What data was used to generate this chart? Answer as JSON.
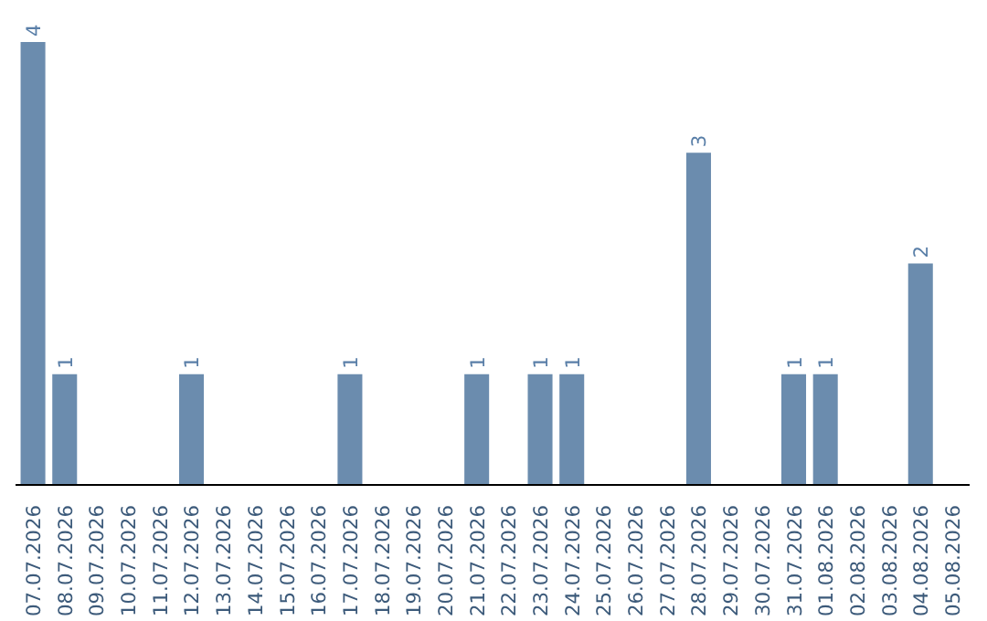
{
  "chart_data": {
    "type": "bar",
    "categories": [
      "07.07.2026",
      "08.07.2026",
      "09.07.2026",
      "10.07.2026",
      "11.07.2026",
      "12.07.2026",
      "13.07.2026",
      "14.07.2026",
      "15.07.2026",
      "16.07.2026",
      "17.07.2026",
      "18.07.2026",
      "19.07.2026",
      "20.07.2026",
      "21.07.2026",
      "22.07.2026",
      "23.07.2026",
      "24.07.2026",
      "25.07.2026",
      "26.07.2026",
      "27.07.2026",
      "28.07.2026",
      "29.07.2026",
      "30.07.2026",
      "31.07.2026",
      "01.08.2026",
      "02.08.2026",
      "03.08.2026",
      "04.08.2026",
      "05.08.2026"
    ],
    "values": [
      4,
      1,
      0,
      0,
      0,
      1,
      0,
      0,
      0,
      0,
      1,
      0,
      0,
      0,
      1,
      0,
      1,
      1,
      0,
      0,
      0,
      3,
      0,
      0,
      1,
      1,
      0,
      0,
      2,
      0
    ],
    "value_labels": [
      "4",
      "1",
      null,
      null,
      null,
      "1",
      null,
      null,
      null,
      null,
      "1",
      null,
      null,
      null,
      "1",
      null,
      "1",
      "1",
      null,
      null,
      null,
      "3",
      null,
      null,
      "1",
      "1",
      null,
      null,
      "2",
      null
    ],
    "color": "#6b8cae",
    "grid": false
  }
}
